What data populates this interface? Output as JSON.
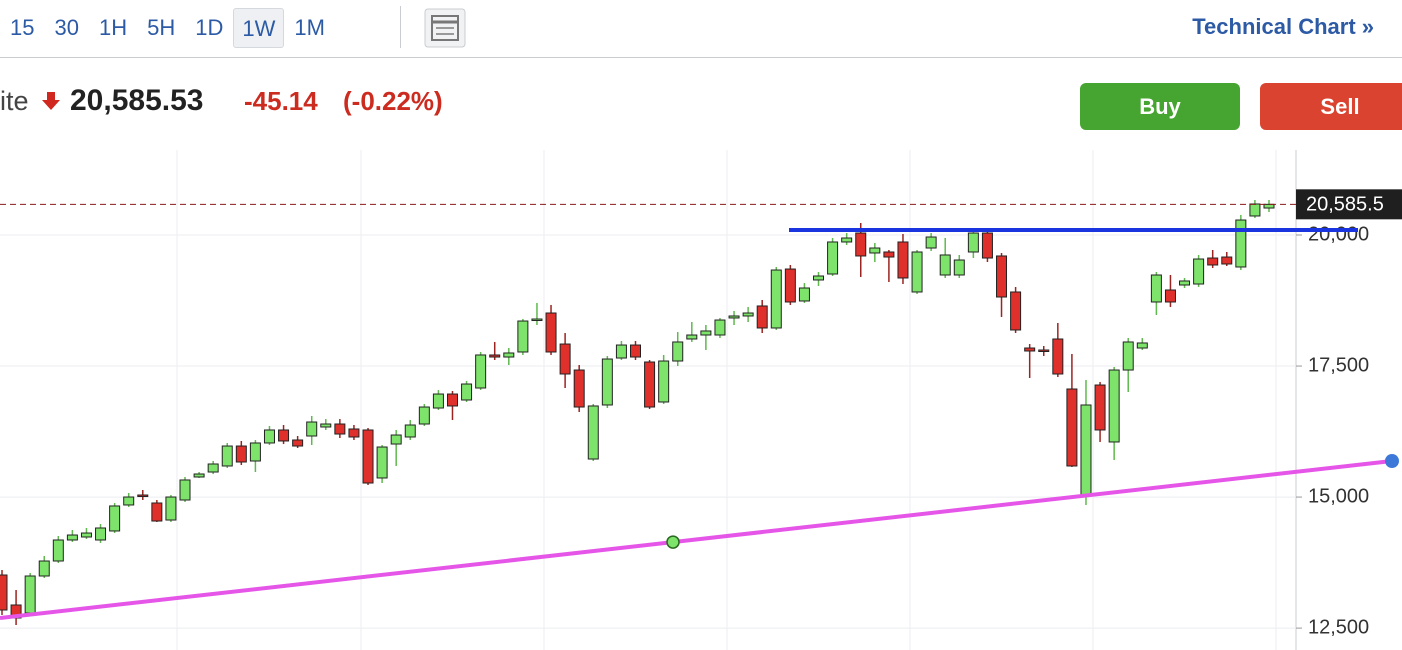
{
  "toolbar": {
    "intervals": [
      "15",
      "30",
      "1H",
      "5H",
      "1D",
      "1W",
      "1M"
    ],
    "selected_interval": "1W",
    "link": "Technical Chart »"
  },
  "quote": {
    "name": "ite",
    "price": "20,585.53",
    "change": "-45.14",
    "change_pct": "(-0.22%)"
  },
  "buttons": {
    "buy": "Buy",
    "sell": "Sell"
  },
  "chart_data": {
    "type": "candlestick",
    "up_color": "#7ee36b",
    "down_color": "#e0302b",
    "ylim": [
      12082,
      21622
    ],
    "yticks": [
      {
        "value": 12500,
        "label": "12,500"
      },
      {
        "value": 15000,
        "label": "15,000"
      },
      {
        "value": 17500,
        "label": "17,500"
      },
      {
        "value": 20000,
        "label": "20,000"
      }
    ],
    "grid": true,
    "last_price": {
      "value": 20585.53,
      "label": "20,585.5"
    },
    "trendlines": [
      {
        "color": "#1a35e0",
        "values": [
          20096,
          20096
        ]
      },
      {
        "color": "#e556e8",
        "values": [
          12693,
          15688
        ]
      }
    ],
    "open": [
      13513,
      12941,
      12788,
      13494,
      13780,
      14181,
      14238,
      14181,
      14353,
      14849,
      15039,
      14887,
      14562,
      14944,
      15383,
      15478,
      15593,
      15974,
      15688,
      16032,
      16280,
      16089,
      16165,
      16337,
      16394,
      16299,
      16280,
      15364,
      16012,
      16146,
      16394,
      16699,
      16966,
      16852,
      17081,
      17711,
      17672,
      17768,
      18378,
      18512,
      17920,
      17424,
      15726,
      16757,
      17653,
      17901,
      17577,
      16814,
      17596,
      18016,
      18092,
      18092,
      18417,
      18455,
      18646,
      18226,
      19351,
      18741,
      19142,
      19256,
      19867,
      20038,
      19657,
      19676,
      19867,
      18913,
      19752,
      19237,
      19237,
      19676,
      20038,
      19600,
      18913,
      17844,
      17806,
      18016,
      17062,
      15020,
      17138,
      16051,
      17424,
      17844,
      18722,
      18951,
      19046,
      19065,
      19561,
      19580,
      19390,
      20363,
      20515
    ],
    "high": [
      13608,
      13227,
      13551,
      13876,
      14257,
      14372,
      14410,
      14486,
      14887,
      15078,
      15135,
      14944,
      15039,
      15383,
      15478,
      15688,
      16032,
      16070,
      16089,
      16356,
      16375,
      16165,
      16547,
      16489,
      16489,
      16375,
      16318,
      15993,
      16280,
      16470,
      16776,
      17043,
      17024,
      17215,
      17768,
      17959,
      17844,
      18397,
      18703,
      18665,
      18130,
      17520,
      16776,
      17692,
      17978,
      17978,
      17615,
      17711,
      18149,
      18340,
      18283,
      18417,
      18550,
      18626,
      18760,
      19390,
      19428,
      19084,
      19294,
      19943,
      20038,
      20229,
      19848,
      19714,
      20019,
      19714,
      20038,
      19943,
      19619,
      20096,
      20096,
      19657,
      19008,
      17920,
      17882,
      18321,
      17730,
      17234,
      17195,
      17482,
      18035,
      18035,
      19294,
      19237,
      19180,
      19619,
      19714,
      19676,
      20382,
      20668,
      20668
    ],
    "low": [
      12750,
      12559,
      12750,
      13456,
      13742,
      14143,
      14200,
      14124,
      14314,
      14810,
      14944,
      14524,
      14524,
      14906,
      15364,
      15440,
      15555,
      15612,
      15478,
      15993,
      16012,
      15936,
      15993,
      16280,
      16127,
      16089,
      15230,
      15268,
      15593,
      16089,
      16356,
      16661,
      16470,
      16814,
      17043,
      17615,
      17520,
      17711,
      18283,
      17711,
      17081,
      16623,
      15688,
      16699,
      17615,
      17615,
      16680,
      16776,
      17501,
      17959,
      17806,
      18035,
      18283,
      18340,
      18130,
      18188,
      18665,
      18703,
      19027,
      19218,
      19809,
      19199,
      19485,
      19103,
      19065,
      18874,
      19695,
      19180,
      19180,
      19561,
      19485,
      18436,
      18130,
      17272,
      17692,
      17291,
      15574,
      14849,
      16051,
      15707,
      17005,
      17806,
      18474,
      18626,
      18989,
      19008,
      19371,
      19409,
      19332,
      20325,
      20439
    ],
    "close": [
      12845,
      12693,
      13494,
      13780,
      14181,
      14276,
      14314,
      14410,
      14830,
      15001,
      15020,
      14543,
      15001,
      15326,
      15440,
      15631,
      15974,
      15669,
      16032,
      16280,
      16070,
      15974,
      16432,
      16394,
      16203,
      16146,
      15268,
      15955,
      16184,
      16375,
      16718,
      16966,
      16738,
      17157,
      17711,
      17672,
      17749,
      18359,
      18397,
      17768,
      17348,
      16718,
      16738,
      17634,
      17901,
      17672,
      16718,
      17596,
      17959,
      18092,
      18169,
      18378,
      18455,
      18512,
      18226,
      19332,
      18722,
      18989,
      19218,
      19867,
      19943,
      19600,
      19752,
      19580,
      19180,
      19676,
      19962,
      19619,
      19523,
      20038,
      19561,
      18817,
      18188,
      17787,
      17787,
      17348,
      15593,
      16757,
      16280,
      17424,
      17959,
      17940,
      19237,
      18722,
      19123,
      19542,
      19428,
      19447,
      20286,
      20592,
      20585.53
    ]
  }
}
